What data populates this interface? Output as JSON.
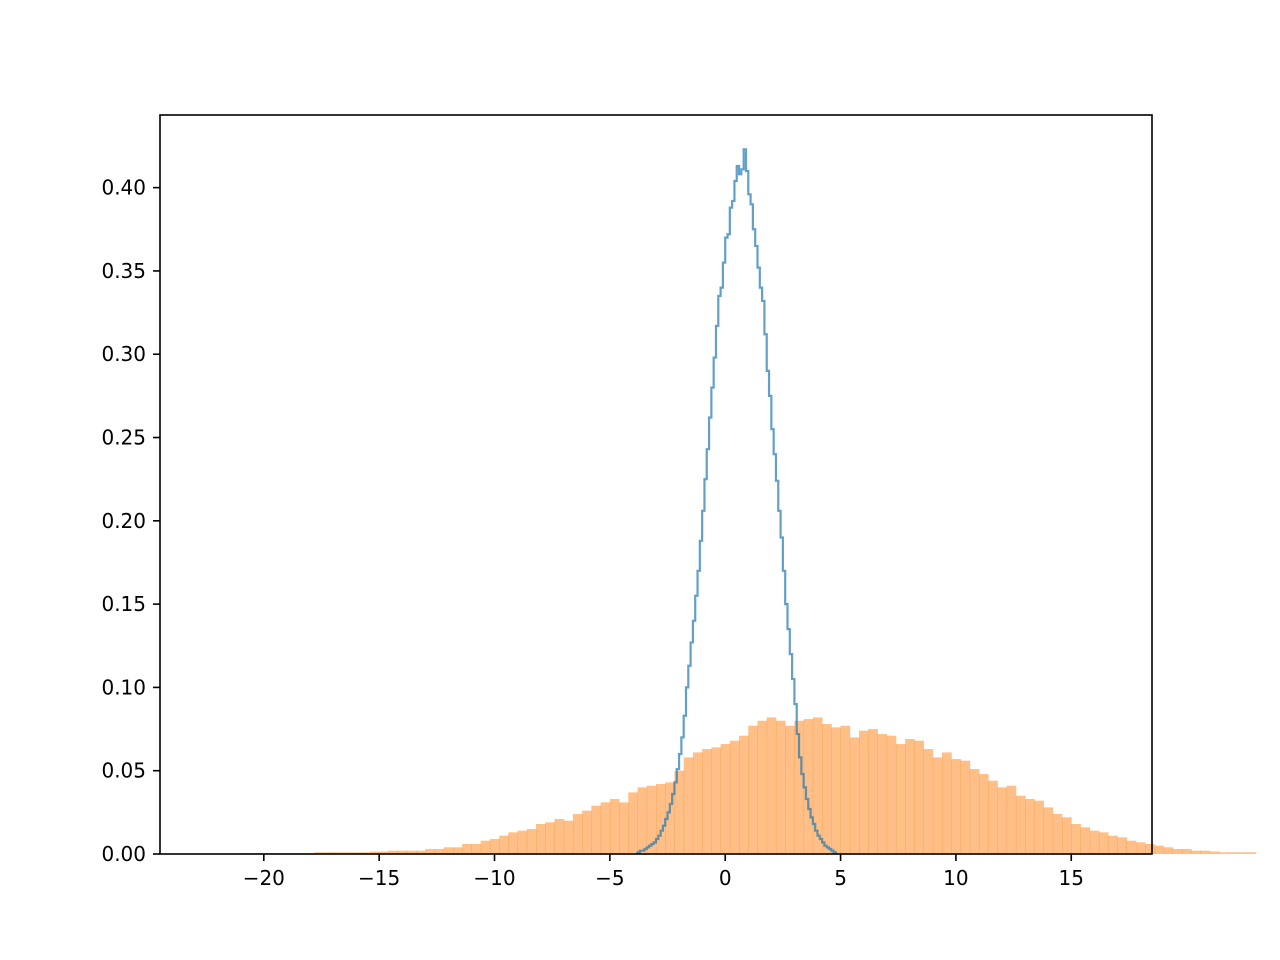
{
  "chart_data": {
    "type": "histogram",
    "title": "",
    "xlabel": "",
    "ylabel": "",
    "xlim": [
      -24.5,
      18.5
    ],
    "ylim": [
      0,
      0.4436
    ],
    "grid": false,
    "legend": "none",
    "xticks": [
      -20,
      -15,
      -10,
      -5,
      0,
      5,
      10,
      15
    ],
    "xtick_labels": [
      "−20",
      "−15",
      "−10",
      "−5",
      "0",
      "5",
      "10",
      "15"
    ],
    "yticks": [
      0,
      0.05,
      0.1,
      0.15,
      0.2,
      0.25,
      0.3,
      0.35,
      0.4
    ],
    "ytick_labels": [
      "0.00",
      "0.05",
      "0.10",
      "0.15",
      "0.20",
      "0.25",
      "0.30",
      "0.35",
      "0.40"
    ],
    "series": [
      {
        "histtype": "step",
        "color": "#1f77b4",
        "alpha": 0.7,
        "bin_start": -3.8,
        "bin_width": 0.1,
        "values": [
          0.001,
          0.002,
          0.002,
          0.003,
          0.004,
          0.005,
          0.006,
          0.007,
          0.009,
          0.011,
          0.014,
          0.017,
          0.021,
          0.025,
          0.03,
          0.036,
          0.043,
          0.051,
          0.06,
          0.07,
          0.083,
          0.1,
          0.113,
          0.127,
          0.14,
          0.155,
          0.17,
          0.188,
          0.206,
          0.225,
          0.243,
          0.262,
          0.28,
          0.298,
          0.317,
          0.335,
          0.34,
          0.355,
          0.37,
          0.372,
          0.388,
          0.392,
          0.404,
          0.413,
          0.408,
          0.411,
          0.423,
          0.41,
          0.396,
          0.39,
          0.375,
          0.365,
          0.352,
          0.34,
          0.332,
          0.312,
          0.29,
          0.275,
          0.255,
          0.24,
          0.224,
          0.206,
          0.19,
          0.17,
          0.15,
          0.135,
          0.12,
          0.105,
          0.09,
          0.072,
          0.058,
          0.048,
          0.04,
          0.033,
          0.027,
          0.022,
          0.018,
          0.014,
          0.011,
          0.009,
          0.007,
          0.005,
          0.004,
          0.003,
          0.002,
          0.001
        ]
      },
      {
        "histtype": "bar",
        "color": "#ff7f0e",
        "alpha": 0.5,
        "bin_start": -21,
        "bin_width": 0.4,
        "values": [
          0.0005,
          0.0005,
          0.0005,
          0.0005,
          0.0005,
          0.0005,
          0.0005,
          0.0005,
          0.001,
          0.001,
          0.001,
          0.001,
          0.001,
          0.001,
          0.0015,
          0.0015,
          0.002,
          0.002,
          0.002,
          0.002,
          0.003,
          0.003,
          0.004,
          0.004,
          0.006,
          0.006,
          0.008,
          0.009,
          0.011,
          0.013,
          0.014,
          0.015,
          0.018,
          0.019,
          0.021,
          0.02,
          0.024,
          0.026,
          0.029,
          0.031,
          0.033,
          0.031,
          0.037,
          0.04,
          0.041,
          0.042,
          0.043,
          0.05,
          0.058,
          0.061,
          0.063,
          0.064,
          0.066,
          0.068,
          0.071,
          0.077,
          0.08,
          0.082,
          0.08,
          0.077,
          0.08,
          0.081,
          0.082,
          0.078,
          0.076,
          0.077,
          0.07,
          0.074,
          0.075,
          0.072,
          0.071,
          0.066,
          0.069,
          0.068,
          0.063,
          0.058,
          0.061,
          0.057,
          0.056,
          0.051,
          0.048,
          0.044,
          0.04,
          0.041,
          0.035,
          0.033,
          0.032,
          0.028,
          0.024,
          0.022,
          0.018,
          0.016,
          0.014,
          0.013,
          0.011,
          0.01,
          0.008,
          0.007,
          0.006,
          0.005,
          0.004,
          0.003,
          0.003,
          0.002,
          0.002,
          0.0015,
          0.001,
          0.001,
          0.001,
          0.001
        ]
      }
    ]
  }
}
